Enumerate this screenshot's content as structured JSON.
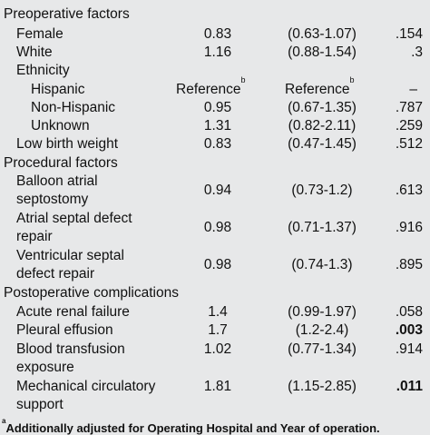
{
  "rows": [
    {
      "label": "Preoperative factors"
    },
    {
      "label": "Female",
      "or": "0.83",
      "ci": "(0.63-1.07)",
      "p": ".154"
    },
    {
      "label": "White",
      "or": "1.16",
      "ci": "(0.88-1.54)",
      "p": ".3"
    },
    {
      "label": "Ethnicity"
    },
    {
      "label": "Hispanic",
      "or": "Reference",
      "or_sup": "b",
      "ci": "Reference",
      "ci_sup": "b",
      "p": "–"
    },
    {
      "label": "Non-Hispanic",
      "or": "0.95",
      "ci": "(0.67-1.35)",
      "p": ".787"
    },
    {
      "label": "Unknown",
      "or": "1.31",
      "ci": "(0.82-2.11)",
      "p": ".259"
    },
    {
      "label": "Low birth weight",
      "or": "0.83",
      "ci": "(0.47-1.45)",
      "p": ".512"
    },
    {
      "label": "Procedural factors"
    },
    {
      "label": "Balloon atrial",
      "or": "0.94",
      "ci": "(0.73-1.2)",
      "p": ".613"
    },
    {
      "label": "septostomy"
    },
    {
      "label": "Atrial septal defect",
      "or": "0.98",
      "ci": "(0.71-1.37)",
      "p": ".916"
    },
    {
      "label": "repair"
    },
    {
      "label": "Ventricular septal",
      "or": "0.98",
      "ci": "(0.74-1.3)",
      "p": ".895"
    },
    {
      "label": "defect repair"
    },
    {
      "label": "Postoperative complications"
    },
    {
      "label": "Acute renal failure",
      "or": "1.4",
      "ci": "(0.99-1.97)",
      "p": ".058"
    },
    {
      "label": "Pleural effusion",
      "or": "1.7",
      "ci": "(1.2-2.4)",
      "p": ".003"
    },
    {
      "label": "Blood transfusion",
      "or": "1.02",
      "ci": "(0.77-1.34)",
      "p": ".914"
    },
    {
      "label": "exposure"
    },
    {
      "label": "Mechanical circulatory",
      "or": "1.81",
      "ci": "(1.15-2.85)",
      "p": ".011"
    },
    {
      "label": "support"
    }
  ],
  "footnote": {
    "marker": "a",
    "text": "Additionally adjusted for Operating Hospital and Year of operation."
  }
}
